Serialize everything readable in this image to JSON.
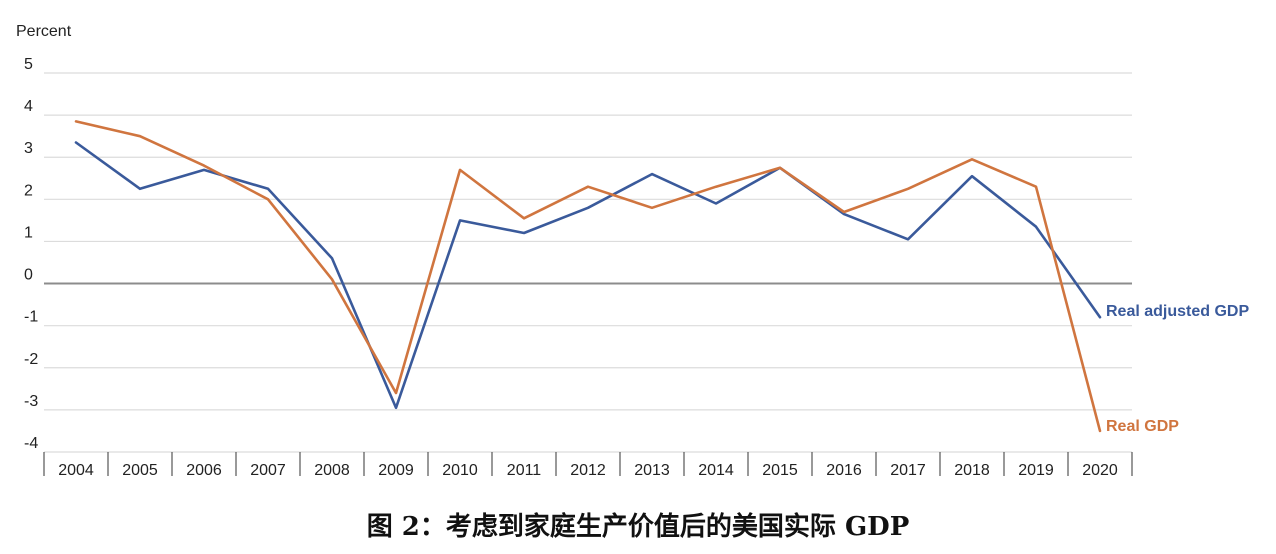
{
  "chart_data": {
    "type": "line",
    "ylabel": "Percent",
    "ylim": [
      -4,
      5
    ],
    "yticks": [
      5,
      4,
      3,
      2,
      1,
      0,
      -1,
      -2,
      -3,
      -4
    ],
    "categories": [
      "2004",
      "2005",
      "2006",
      "2007",
      "2008",
      "2009",
      "2010",
      "2011",
      "2012",
      "2013",
      "2014",
      "2015",
      "2016",
      "2017",
      "2018",
      "2019",
      "2020"
    ],
    "series": [
      {
        "name": "Real adjusted GDP",
        "color": "#3a5a9b",
        "values": [
          3.35,
          2.25,
          2.7,
          2.25,
          0.6,
          -2.95,
          1.5,
          1.2,
          1.8,
          2.6,
          1.9,
          2.75,
          1.65,
          1.05,
          2.55,
          1.35,
          -0.8
        ]
      },
      {
        "name": "Real GDP",
        "color": "#d0753f",
        "values": [
          3.85,
          3.5,
          2.8,
          2.0,
          0.1,
          -2.6,
          2.7,
          1.55,
          2.3,
          1.8,
          2.3,
          2.75,
          1.7,
          2.25,
          2.95,
          2.3,
          -3.5
        ]
      }
    ],
    "grid": true,
    "legend": "inline labels at right end of lines"
  },
  "caption": "图 2：考虑到家庭生产价值后的美国实际 GDP"
}
